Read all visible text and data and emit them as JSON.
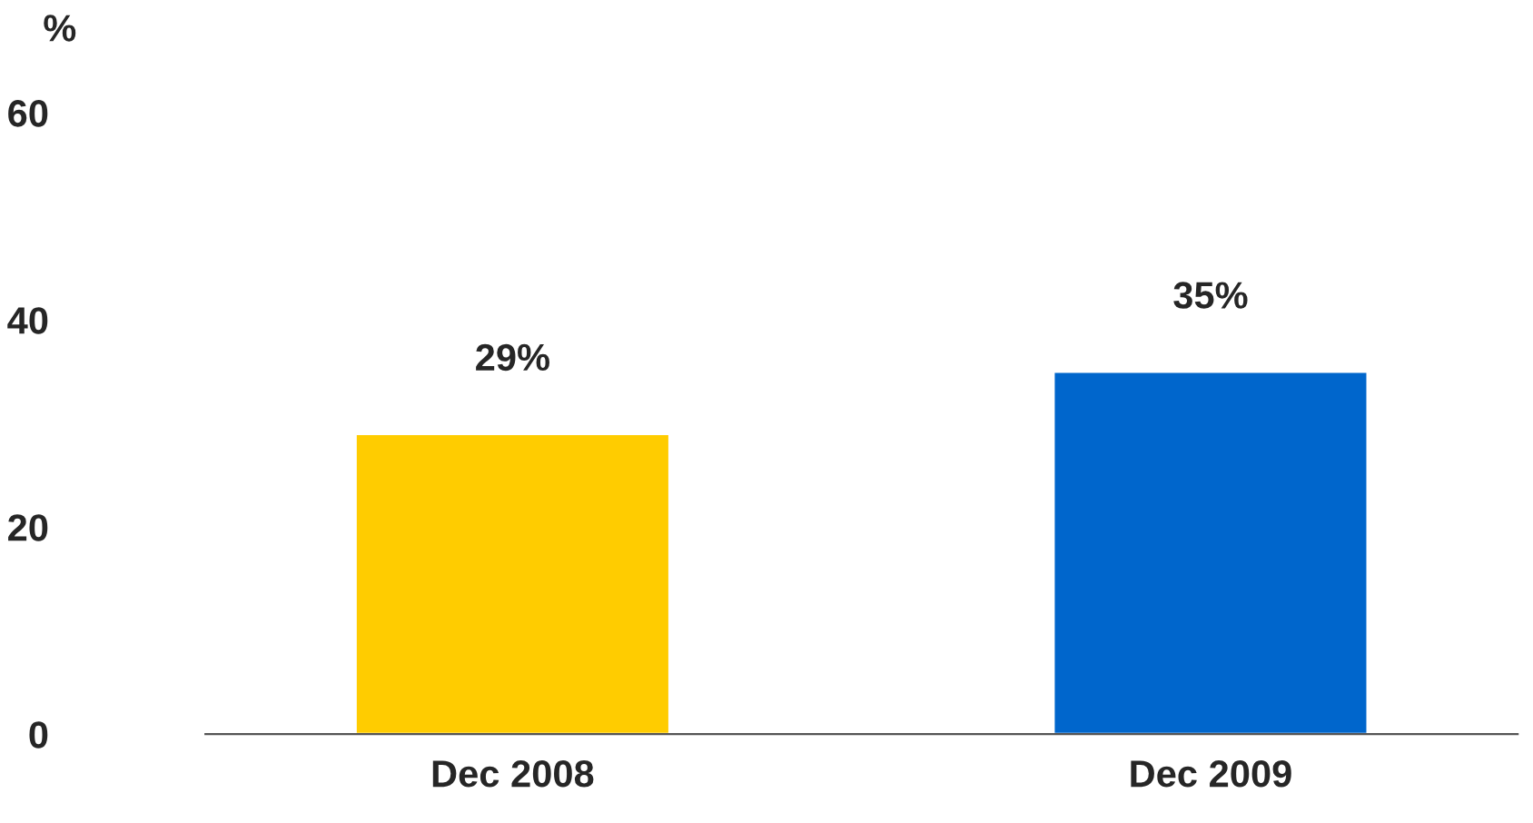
{
  "chart_data": {
    "type": "bar",
    "ylabel": "%",
    "categories": [
      "Dec 2008",
      "Dec 2009"
    ],
    "values": [
      29,
      35
    ],
    "colors": [
      "#ffcc00",
      "#0066cc"
    ],
    "value_labels": [
      "29%",
      "35%"
    ],
    "ylim": [
      0,
      60
    ],
    "yticks": [
      0,
      20,
      40,
      60
    ],
    "grid": false,
    "legend": false
  }
}
